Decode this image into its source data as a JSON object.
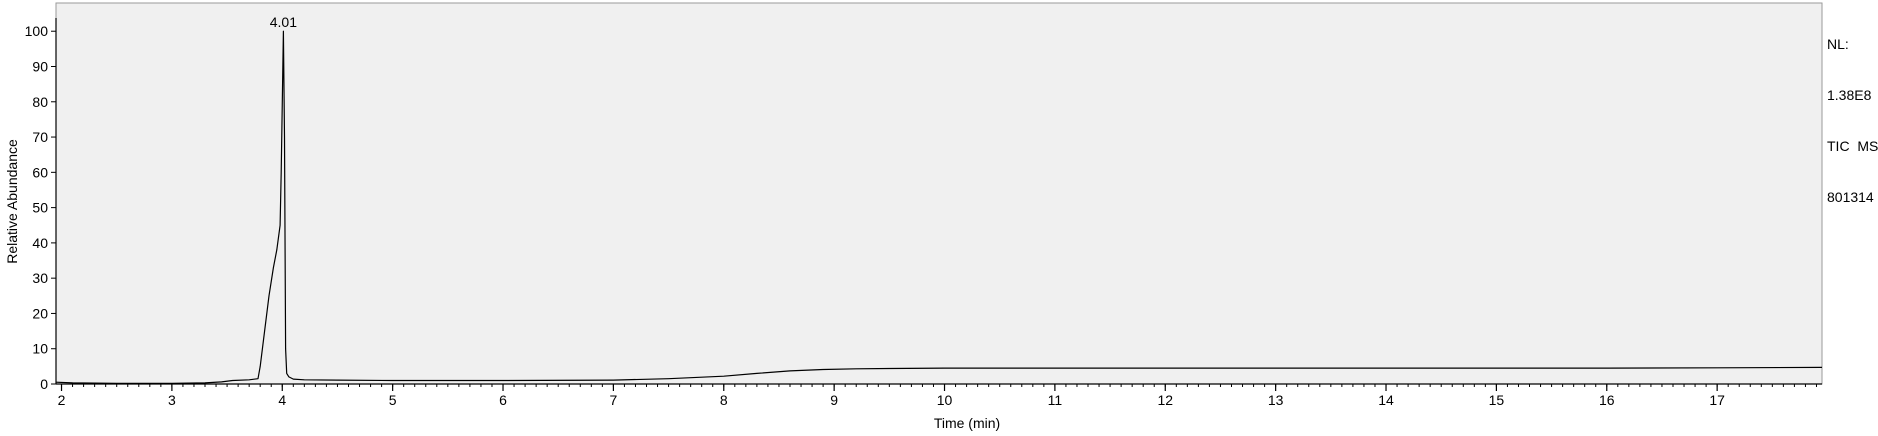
{
  "chart_data": {
    "type": "line",
    "title": "",
    "xlabel": "Time (min)",
    "ylabel": "Relative Abundance",
    "xlim": [
      1.95,
      17.95
    ],
    "ylim": [
      0,
      108
    ],
    "x_ticks": [
      2,
      3,
      4,
      5,
      6,
      7,
      8,
      9,
      10,
      11,
      12,
      13,
      14,
      15,
      16,
      17
    ],
    "y_ticks": [
      0,
      10,
      20,
      30,
      40,
      50,
      60,
      70,
      80,
      90,
      100
    ],
    "x_minor_step": 0.1,
    "grid": false,
    "peak_annotations": [
      {
        "x": 4.01,
        "y": 100,
        "label": "4.01"
      }
    ],
    "series": [
      {
        "name": "TIC MS 801314",
        "x": [
          1.95,
          2.1,
          2.5,
          3.0,
          3.3,
          3.45,
          3.55,
          3.7,
          3.78,
          3.8,
          3.84,
          3.88,
          3.92,
          3.95,
          3.98,
          3.99,
          4.0,
          4.01,
          4.02,
          4.03,
          4.04,
          4.06,
          4.1,
          4.2,
          4.5,
          5.0,
          6.0,
          7.0,
          7.5,
          8.0,
          8.3,
          8.6,
          8.9,
          9.2,
          9.5,
          10.0,
          11.0,
          12.0,
          13.0,
          14.0,
          15.0,
          16.0,
          17.0,
          17.95
        ],
        "y": [
          0.5,
          0.3,
          0.2,
          0.2,
          0.3,
          0.6,
          1.0,
          1.2,
          1.5,
          5.0,
          15.0,
          25.0,
          33.0,
          38.0,
          45.0,
          60.0,
          80.0,
          100.0,
          70.0,
          10.0,
          3.0,
          2.0,
          1.4,
          1.2,
          1.1,
          1.0,
          1.0,
          1.1,
          1.5,
          2.2,
          3.0,
          3.7,
          4.1,
          4.3,
          4.4,
          4.5,
          4.5,
          4.5,
          4.5,
          4.5,
          4.5,
          4.5,
          4.6,
          4.7
        ]
      }
    ]
  },
  "info_box": {
    "line1": "NL:",
    "line2": "1.38E8",
    "line3": "TIC  MS",
    "line4": "801314"
  }
}
